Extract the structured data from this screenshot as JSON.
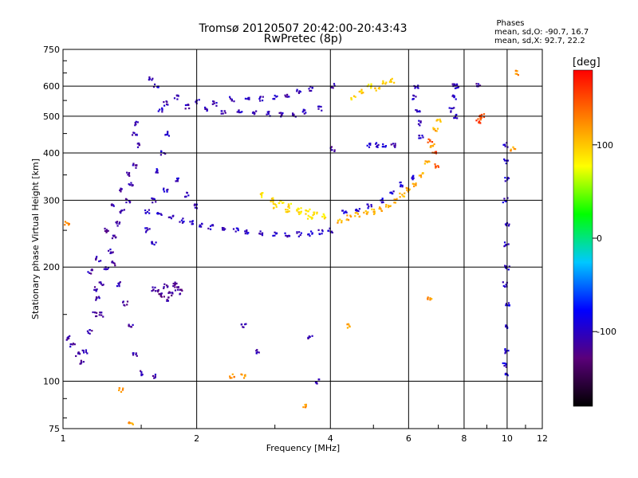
{
  "chart_data": {
    "type": "scatter",
    "title": "Tromsø 20120507 20:42:00-20:43:43",
    "subtitle": "RwPretec (8p)",
    "xlabel": "Frequency [MHz]",
    "ylabel": "Stationary phase Virtual Height [km]",
    "x_scale": "log",
    "y_scale": "log",
    "xlim": [
      1,
      12
    ],
    "ylim": [
      75,
      750
    ],
    "x_ticks": [
      1,
      2,
      4,
      6,
      8,
      10,
      12
    ],
    "y_ticks": [
      75,
      100,
      200,
      300,
      400,
      500,
      600,
      750
    ],
    "grid": true,
    "phases_header": {
      "title": "Phases",
      "line_o": "mean, sd,O:  -90.7, 16.7",
      "line_x": "mean, sd,X:  92.7, 22.2"
    },
    "colorbar": {
      "label": "[deg]",
      "range": [
        -180,
        180
      ],
      "ticks": [
        100,
        0,
        -100
      ],
      "colors": [
        "#000000",
        "#5a007a",
        "#0000ff",
        "#00c8ff",
        "#00ff00",
        "#ffff00",
        "#ff8000",
        "#ff0000"
      ]
    },
    "series": [
      {
        "phase": -110,
        "points": [
          [
            1.03,
            130
          ],
          [
            1.05,
            125
          ],
          [
            1.08,
            118
          ],
          [
            1.1,
            112
          ],
          [
            1.12,
            120
          ],
          [
            1.15,
            135
          ],
          [
            1.18,
            150
          ],
          [
            1.2,
            165
          ],
          [
            1.22,
            180
          ],
          [
            1.25,
            200
          ],
          [
            1.28,
            220
          ],
          [
            1.3,
            240
          ],
          [
            1.33,
            260
          ],
          [
            1.36,
            280
          ],
          [
            1.4,
            300
          ],
          [
            1.42,
            330
          ],
          [
            1.45,
            370
          ],
          [
            1.48,
            420
          ],
          [
            1.2,
            210
          ],
          [
            1.25,
            250
          ],
          [
            1.3,
            290
          ],
          [
            1.35,
            320
          ],
          [
            1.4,
            350
          ],
          [
            1.45,
            450
          ],
          [
            1.47,
            480
          ],
          [
            1.38,
            160
          ],
          [
            1.42,
            140
          ],
          [
            1.45,
            118
          ],
          [
            1.33,
            180
          ],
          [
            1.3,
            205
          ],
          [
            1.22,
            150
          ],
          [
            1.18,
            175
          ],
          [
            1.15,
            195
          ]
        ]
      },
      {
        "phase": -100,
        "points": [
          [
            1.55,
            280
          ],
          [
            1.65,
            275
          ],
          [
            1.75,
            270
          ],
          [
            1.85,
            265
          ],
          [
            1.95,
            262
          ],
          [
            2.05,
            258
          ],
          [
            2.15,
            255
          ],
          [
            2.3,
            252
          ],
          [
            2.45,
            250
          ],
          [
            2.6,
            248
          ],
          [
            2.8,
            246
          ],
          [
            3.0,
            245
          ],
          [
            3.2,
            244
          ],
          [
            3.4,
            244
          ],
          [
            3.6,
            245
          ],
          [
            3.8,
            247
          ],
          [
            4.0,
            250
          ],
          [
            1.6,
            300
          ],
          [
            1.7,
            320
          ],
          [
            1.8,
            340
          ],
          [
            1.9,
            310
          ],
          [
            2.0,
            290
          ],
          [
            1.62,
            360
          ],
          [
            1.68,
            400
          ],
          [
            1.72,
            450
          ],
          [
            1.66,
            520
          ],
          [
            1.62,
            600
          ],
          [
            1.58,
            630
          ],
          [
            1.55,
            250
          ],
          [
            1.6,
            230
          ]
        ]
      },
      {
        "phase": -105,
        "points": [
          [
            1.7,
            540
          ],
          [
            1.9,
            530
          ],
          [
            2.1,
            520
          ],
          [
            2.3,
            515
          ],
          [
            2.5,
            512
          ],
          [
            2.7,
            510
          ],
          [
            2.9,
            508
          ],
          [
            3.1,
            505
          ],
          [
            3.3,
            505
          ],
          [
            3.5,
            515
          ],
          [
            3.8,
            525
          ],
          [
            1.8,
            560
          ],
          [
            2.0,
            545
          ],
          [
            2.2,
            540
          ],
          [
            2.4,
            555
          ],
          [
            2.6,
            560
          ],
          [
            2.8,
            555
          ],
          [
            3.0,
            560
          ],
          [
            3.2,
            565
          ],
          [
            3.4,
            580
          ],
          [
            3.6,
            590
          ]
        ]
      },
      {
        "phase": -120,
        "points": [
          [
            1.6,
            175
          ],
          [
            1.65,
            172
          ],
          [
            1.7,
            178
          ],
          [
            1.75,
            170
          ],
          [
            1.8,
            175
          ],
          [
            1.72,
            165
          ],
          [
            1.68,
            168
          ],
          [
            1.78,
            180
          ],
          [
            1.85,
            172
          ]
        ]
      },
      {
        "phase": 90,
        "points": [
          [
            2.8,
            310
          ],
          [
            2.95,
            300
          ],
          [
            3.1,
            295
          ],
          [
            3.25,
            290
          ],
          [
            3.4,
            285
          ],
          [
            3.55,
            280
          ],
          [
            3.7,
            275
          ],
          [
            3.85,
            272
          ],
          [
            3.0,
            290
          ],
          [
            3.2,
            282
          ],
          [
            3.4,
            278
          ],
          [
            3.6,
            272
          ]
        ]
      },
      {
        "phase": 110,
        "points": [
          [
            4.2,
            265
          ],
          [
            4.4,
            270
          ],
          [
            4.6,
            275
          ],
          [
            4.8,
            278
          ],
          [
            5.0,
            280
          ],
          [
            5.2,
            285
          ],
          [
            5.4,
            292
          ],
          [
            5.6,
            300
          ],
          [
            5.8,
            310
          ],
          [
            6.0,
            320
          ],
          [
            6.2,
            330
          ],
          [
            6.4,
            350
          ],
          [
            6.6,
            380
          ],
          [
            6.8,
            420
          ],
          [
            6.9,
            460
          ],
          [
            7.0,
            490
          ]
        ]
      },
      {
        "phase": -95,
        "points": [
          [
            4.3,
            280
          ],
          [
            4.6,
            285
          ],
          [
            4.9,
            290
          ],
          [
            5.2,
            300
          ],
          [
            5.5,
            315
          ],
          [
            5.8,
            330
          ],
          [
            6.1,
            345
          ]
        ]
      },
      {
        "phase": 95,
        "points": [
          [
            4.5,
            560
          ],
          [
            4.7,
            580
          ],
          [
            4.9,
            600
          ],
          [
            5.1,
            590
          ],
          [
            5.3,
            610
          ],
          [
            5.5,
            620
          ]
        ]
      },
      {
        "phase": -100,
        "points": [
          [
            6.2,
            560
          ],
          [
            6.25,
            600
          ],
          [
            6.3,
            520
          ],
          [
            6.35,
            480
          ],
          [
            6.4,
            440
          ],
          [
            7.5,
            520
          ],
          [
            7.6,
            560
          ],
          [
            7.7,
            600
          ],
          [
            7.65,
            500
          ],
          [
            4.9,
            420
          ],
          [
            5.1,
            420
          ],
          [
            5.3,
            420
          ]
        ]
      },
      {
        "phase": 150,
        "points": [
          [
            8.6,
            485
          ],
          [
            8.7,
            495
          ],
          [
            8.8,
            500
          ],
          [
            6.7,
            430
          ],
          [
            6.85,
            400
          ],
          [
            6.95,
            370
          ]
        ]
      },
      {
        "phase": -95,
        "points": [
          [
            9.9,
            420
          ],
          [
            9.95,
            380
          ],
          [
            10.0,
            340
          ],
          [
            9.9,
            300
          ],
          [
            10.0,
            260
          ],
          [
            9.95,
            230
          ],
          [
            10.0,
            200
          ],
          [
            9.9,
            180
          ],
          [
            10.0,
            160
          ],
          [
            9.95,
            140
          ],
          [
            10.0,
            120
          ],
          [
            9.9,
            110
          ],
          [
            10.0,
            105
          ]
        ]
      },
      {
        "phase": -110,
        "points": [
          [
            1.5,
            105
          ],
          [
            1.6,
            103
          ],
          [
            2.55,
            140
          ],
          [
            2.75,
            120
          ],
          [
            3.6,
            130
          ],
          [
            3.75,
            100
          ],
          [
            4.05,
            410
          ],
          [
            5.55,
            420
          ],
          [
            4.05,
            600
          ],
          [
            8.6,
            600
          ],
          [
            7.55,
            600
          ]
        ]
      },
      {
        "phase": 120,
        "points": [
          [
            1.02,
            260
          ],
          [
            1.35,
            95
          ],
          [
            1.42,
            78
          ],
          [
            2.4,
            103
          ],
          [
            2.55,
            103
          ],
          [
            3.5,
            86
          ],
          [
            4.4,
            140
          ],
          [
            6.7,
            165
          ],
          [
            10.5,
            650
          ],
          [
            10.3,
            410
          ]
        ]
      }
    ]
  }
}
